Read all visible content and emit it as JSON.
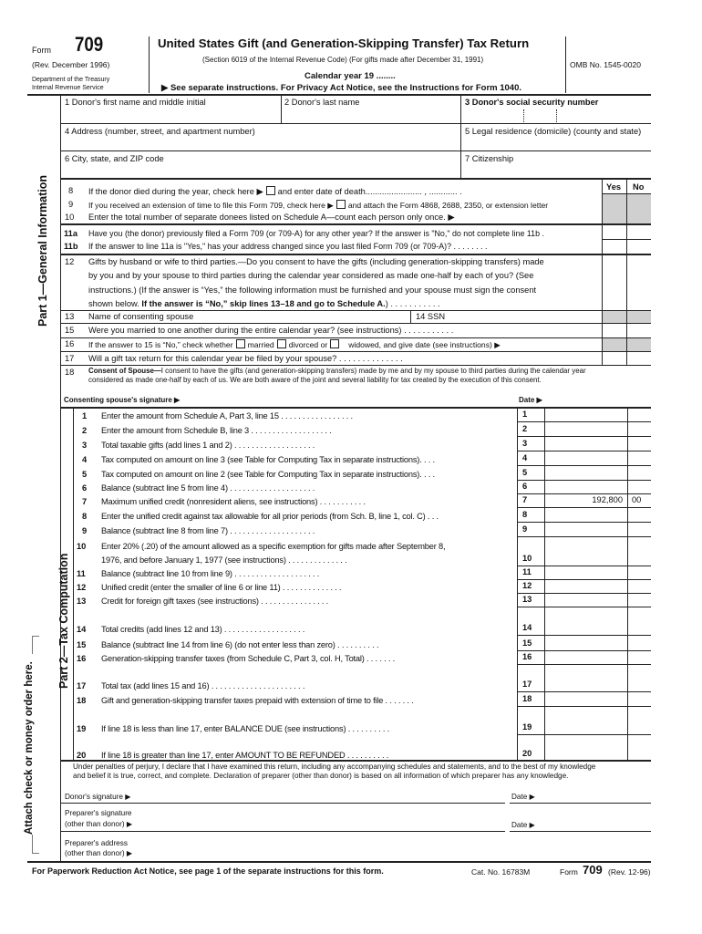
{
  "header": {
    "form_label": "Form",
    "form_number": "709",
    "revision": "(Rev. December 1996)",
    "dept1": "Department of the Treasury",
    "dept2": "Internal Revenue Service",
    "title": "United States Gift (and Generation-Skipping Transfer) Tax Return",
    "subtitle": "(Section 6019 of the Internal Revenue Code) (For gifts made after December 31, 1991)",
    "calendar_year": "Calendar year 19 ........",
    "instructions": "▶ See separate instructions. For Privacy Act Notice, see the Instructions for Form 1040.",
    "omb": "OMB No. 1545-0020"
  },
  "fields": {
    "f1": "1  Donor's first name and middle initial",
    "f2": "2  Donor's last name",
    "f3": "3  Donor's social security number",
    "f4": "4  Address (number, street, and apartment number)",
    "f5": "5  Legal residence (domicile) (county and state)",
    "f6": "6  City, state, and ZIP code",
    "f7": "7  Citizenship"
  },
  "part1": {
    "label": "Part 1—General Information",
    "yes": "Yes",
    "no": "No",
    "l8n": "8",
    "l8a": "If the donor died during the year, check here ▶",
    "l8b": "and enter date of death",
    "l8c": "........................  ,  ............ .",
    "l9n": "9",
    "l9a": "If you received an extension of time to file this Form 709, check here ▶",
    "l9b": "and attach the Form 4868, 2688, 2350, or extension letter",
    "l10n": "10",
    "l10": "Enter the total number of separate donees listed on Schedule A—count each person only once. ▶",
    "l11an": "11a",
    "l11a": "Have you (the donor) previously filed a Form 709 (or 709-A) for any other year? If the answer is \"No,\" do not complete line 11b .",
    "l11bn": "11b",
    "l11b": "If the answer to line 11a is \"Yes,\" has your address changed since you last filed Form 709 (or 709-A)? . . . . . . . .",
    "l12n": "12",
    "l12_1": "Gifts by husband or wife to third parties.—Do you consent to have the gifts (including generation-skipping transfers) made",
    "l12_2": "by you and by your spouse to third parties during the calendar year considered as made one-half by each of you? (See",
    "l12_3": "instructions.) (If the answer is “Yes,” the following information must be furnished and your spouse must sign the consent",
    "l12_4a": "shown below.",
    "l12_4b": "If the answer is “No,” skip lines 13–18 and go to Schedule A.",
    "l12_4c": ") . . . . . . . . . . .",
    "l13n": "13",
    "l13": "Name of consenting spouse",
    "l14": "14  SSN",
    "l15n": "15",
    "l15": "Were you married to one another during the entire calendar year? (see instructions)  . . . . . . . . . . .",
    "l16n": "16",
    "l16a": "If the answer to 15 is “No,” check whether",
    "l16b": "married",
    "l16c": "divorced or",
    "l16d": "widowed, and give date (see instructions) ▶",
    "l17n": "17",
    "l17": "Will a gift tax return for this calendar year be filed by your spouse?  . . . . . . . . . . . . . .",
    "l18n": "18",
    "l18a": "Consent of Spouse—",
    "l18b": "I consent to have the gifts (and generation-skipping transfers) made by me and by my spouse to third parties during the calendar year",
    "l18c": "considered as made one-half by each of us. We are both aware of the joint and several liability for tax created by the execution of this consent.",
    "spouse_sig": "Consenting spouse's signature ▶",
    "date": "Date ▶"
  },
  "part2": {
    "label": "Part 2—Tax Computation",
    "lines": [
      {
        "n": "1",
        "t": "Enter the amount from Schedule A, Part 3, line 15 . . . . . . . . . . . . . . . . .",
        "amt": "",
        "c": ""
      },
      {
        "n": "2",
        "t": "Enter the amount from Schedule B, line 3  . . . . . . . . . . . . . . . . . . .",
        "amt": "",
        "c": ""
      },
      {
        "n": "3",
        "t": "Total taxable gifts (add lines 1 and 2)  . . . . . . . . . . . . . . . . . . .",
        "amt": "",
        "c": ""
      },
      {
        "n": "4",
        "t": "Tax computed on amount on line 3 (see Table for Computing Tax in separate instructions). . . .",
        "amt": "",
        "c": ""
      },
      {
        "n": "5",
        "t": "Tax computed on amount on line 2 (see Table for Computing Tax in separate instructions). . . .",
        "amt": "",
        "c": ""
      },
      {
        "n": "6",
        "t": "Balance (subtract line 5 from line 4) . . . . . . . . . . . . . . . . . . . .",
        "amt": "",
        "c": ""
      },
      {
        "n": "7",
        "t": "Maximum unified credit (nonresident aliens, see instructions)  . . . . . . . . . . .",
        "amt": "192,800",
        "c": "00"
      },
      {
        "n": "8",
        "t": "Enter the unified credit against tax allowable for all prior periods (from Sch. B, line 1, col. C) . . .",
        "amt": "",
        "c": ""
      },
      {
        "n": "9",
        "t": "Balance (subtract line 8 from line 7) . . . . . . . . . . . . . . . . . . . .",
        "amt": "",
        "c": ""
      },
      {
        "n": "10",
        "t": "Enter 20% (.20) of the amount allowed as a specific exemption for gifts made after September 8,",
        "t2": "1976, and before January 1, 1977 (see instructions)  . . . . . . . . . . . . . .",
        "amt": "",
        "c": ""
      },
      {
        "n": "11",
        "t": "Balance (subtract line 10 from line 9) . . . . . . . . . . . . . . . . . . . .",
        "amt": "",
        "c": ""
      },
      {
        "n": "12",
        "t": "Unified credit (enter the smaller of line 6 or line 11)  . . . . . . . . . . . . . .",
        "amt": "",
        "c": ""
      },
      {
        "n": "13",
        "t": "Credit for foreign gift taxes (see instructions)  . . . . . . . . . . . . . . . .",
        "amt": "",
        "c": ""
      },
      {
        "n": "14",
        "t": "Total credits (add lines 12 and 13)  . . . . . . . . . . . . . . . . . . .",
        "amt": "",
        "c": ""
      },
      {
        "n": "15",
        "t": "Balance (subtract line 14 from line 6) (do not enter less than zero)  . . . . . . . . . .",
        "amt": "",
        "c": ""
      },
      {
        "n": "16",
        "t": "Generation-skipping transfer taxes (from Schedule C, Part 3, col. H, Total)  . . . . . . .",
        "amt": "",
        "c": ""
      },
      {
        "n": "17",
        "t": "Total tax (add lines 15 and 16) . . . . . . . . . . . . . . . . . . . . . .",
        "amt": "",
        "c": ""
      },
      {
        "n": "18",
        "t": "Gift and generation-skipping transfer taxes prepaid with extension of time to file . . . . . . .",
        "amt": "",
        "c": ""
      },
      {
        "n": "19",
        "t": "If line 18 is less than line 17, enter BALANCE DUE (see instructions)  . . . . . . . . . .",
        "amt": "",
        "c": ""
      },
      {
        "n": "20",
        "t": "If line 18 is greater than line 17, enter AMOUNT TO BE REFUNDED  . . . . . . . . . .",
        "amt": "",
        "c": ""
      }
    ]
  },
  "attach_label": "Attach check or money order here.",
  "signature": {
    "perjury1": "Under penalties of perjury, I declare that I have examined this return, including any accompanying schedules and statements, and to the best of my knowledge",
    "perjury2": "and belief it is true, correct, and complete. Declaration of preparer (other than donor) is based on all information of which preparer has any knowledge.",
    "donor_sig": "Donor's signature ▶",
    "date": "Date ▶",
    "prep_sig1": "Preparer's signature",
    "prep_sig2": "(other than donor) ▶",
    "prep_addr1": "Preparer's address",
    "prep_addr2": "(other than donor) ▶"
  },
  "footer": {
    "notice": "For Paperwork Reduction Act Notice, see page 1 of the separate instructions for this form.",
    "cat": "Cat. No. 16783M",
    "form_label": "Form",
    "form_number": "709",
    "rev": "(Rev. 12-96)"
  }
}
